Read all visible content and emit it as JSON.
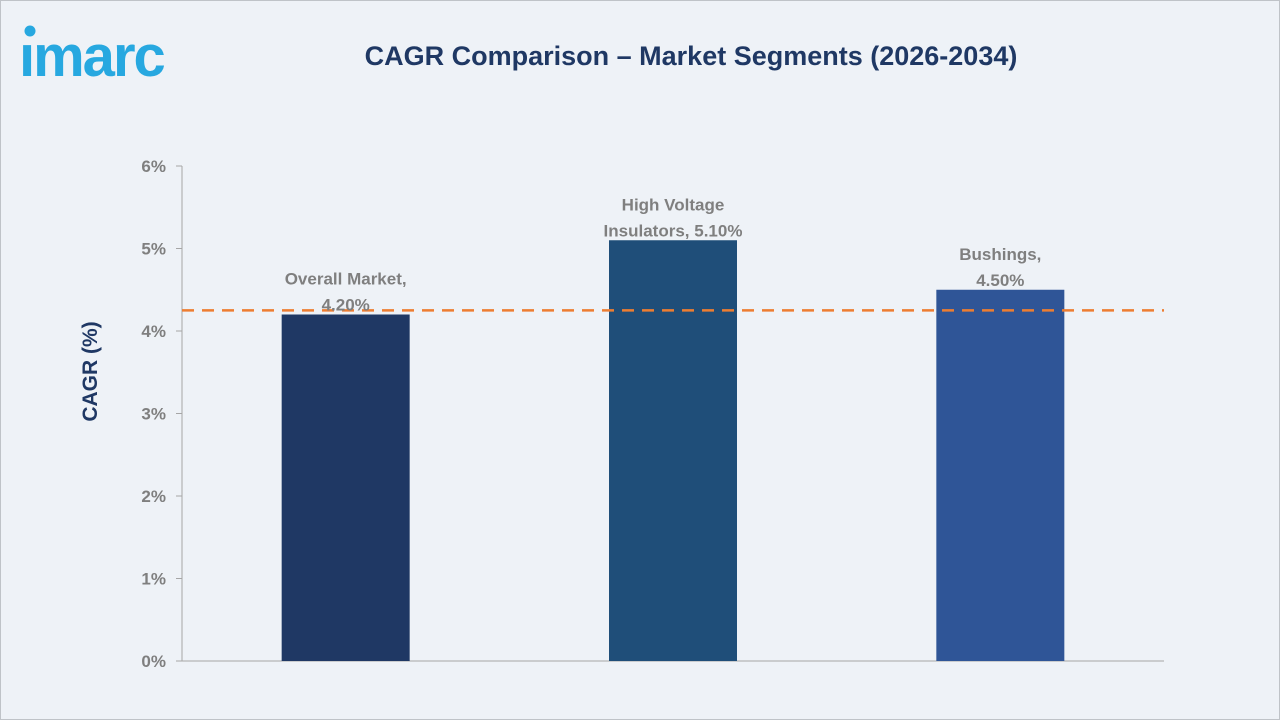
{
  "brand": {
    "logo_text": "imarc"
  },
  "chart_data": {
    "type": "bar",
    "title": "CAGR Comparison – Market Segments (2026-2034)",
    "ylabel": "CAGR (%)",
    "xlabel": "",
    "ylim": [
      0,
      6
    ],
    "yticks": [
      0,
      1,
      2,
      3,
      4,
      5,
      6
    ],
    "ytick_labels": [
      "0%",
      "1%",
      "2%",
      "3%",
      "4%",
      "5%",
      "6%"
    ],
    "categories": [
      "Overall Market",
      "High Voltage Insulators",
      "Bushings"
    ],
    "values": [
      4.2,
      5.1,
      4.5
    ],
    "data_labels": [
      [
        "Overall Market,",
        "4.20%"
      ],
      [
        "High Voltage",
        "Insulators, 5.10%"
      ],
      [
        "Bushings,",
        "4.50%"
      ]
    ],
    "bar_colors": [
      "#1f3864",
      "#1f4e79",
      "#2f5597"
    ],
    "reference_line": {
      "value": 4.25,
      "style": "dashed",
      "color": "#ed7d31"
    },
    "grid": false,
    "legend": "none"
  }
}
